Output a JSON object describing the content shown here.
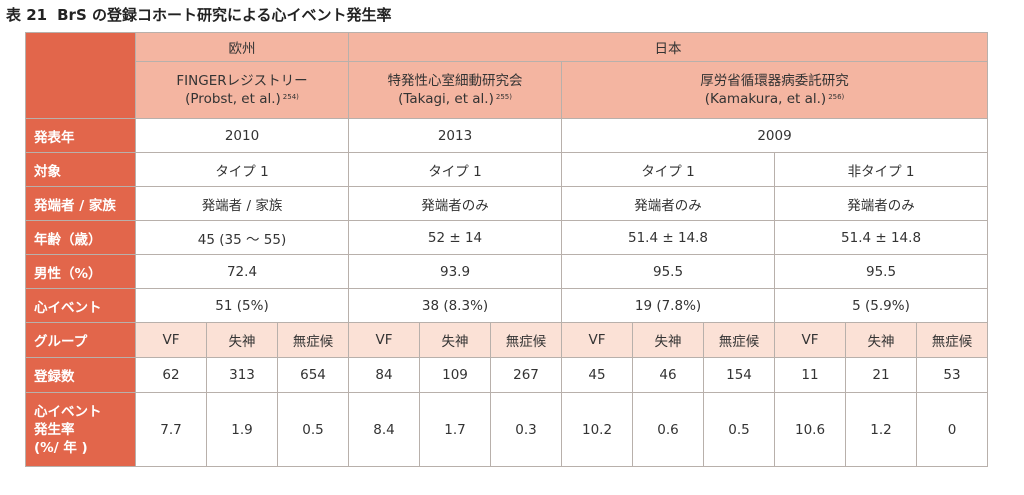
{
  "caption": {
    "number": "表 21",
    "title": "BrS の登録コホート研究による心イベント発生率"
  },
  "regions": {
    "europe": "欧州",
    "japan": "日本"
  },
  "studies": [
    {
      "name": "FINGERレジストリー",
      "ref": "(Probst, et al.)",
      "sup": "254)"
    },
    {
      "name": "特発性心室細動研究会",
      "ref": "(Takagi, et al.)",
      "sup": "255)"
    },
    {
      "name": "厚労省循環器病委託研究",
      "ref": "(Kamakura, et al.)",
      "sup": "256)"
    }
  ],
  "row_labels": {
    "year": "発表年",
    "subject": "対象",
    "proband": "発端者 / 家族",
    "age": "年齢（歳）",
    "male": "男性（%）",
    "events": "心イベント",
    "group": "グループ",
    "enrolled": "登録数",
    "rate_line1": "心イベント",
    "rate_line2": "発生率",
    "rate_line3": "(%/ 年 )"
  },
  "year": [
    "2010",
    "2013",
    "2009"
  ],
  "subject": [
    "タイプ 1",
    "タイプ 1",
    "タイプ 1",
    "非タイプ 1"
  ],
  "proband": [
    "発端者 / 家族",
    "発端者のみ",
    "発端者のみ",
    "発端者のみ"
  ],
  "age": [
    "45 (35 〜 55)",
    "52 ± 14",
    "51.4 ± 14.8",
    "51.4 ± 14.8"
  ],
  "male": [
    "72.4",
    "93.9",
    "95.5",
    "95.5"
  ],
  "events": [
    "51 (5%)",
    "38 (8.3%)",
    "19 (7.8%)",
    "5 (5.9%)"
  ],
  "groups": [
    "VF",
    "失神",
    "無症候",
    "VF",
    "失神",
    "無症候",
    "VF",
    "失神",
    "無症候",
    "VF",
    "失神",
    "無症候"
  ],
  "enrolled": [
    "62",
    "313",
    "654",
    "84",
    "109",
    "267",
    "45",
    "46",
    "154",
    "11",
    "21",
    "53"
  ],
  "rates": [
    "7.7",
    "1.9",
    "0.5",
    "8.4",
    "1.7",
    "0.3",
    "10.2",
    "0.6",
    "0.5",
    "10.6",
    "1.2",
    "0"
  ],
  "colors": {
    "row_header": "#e2664b",
    "header": "#f4b5a1",
    "group_row": "#fbe1d6",
    "border": "#b8b0ab"
  }
}
